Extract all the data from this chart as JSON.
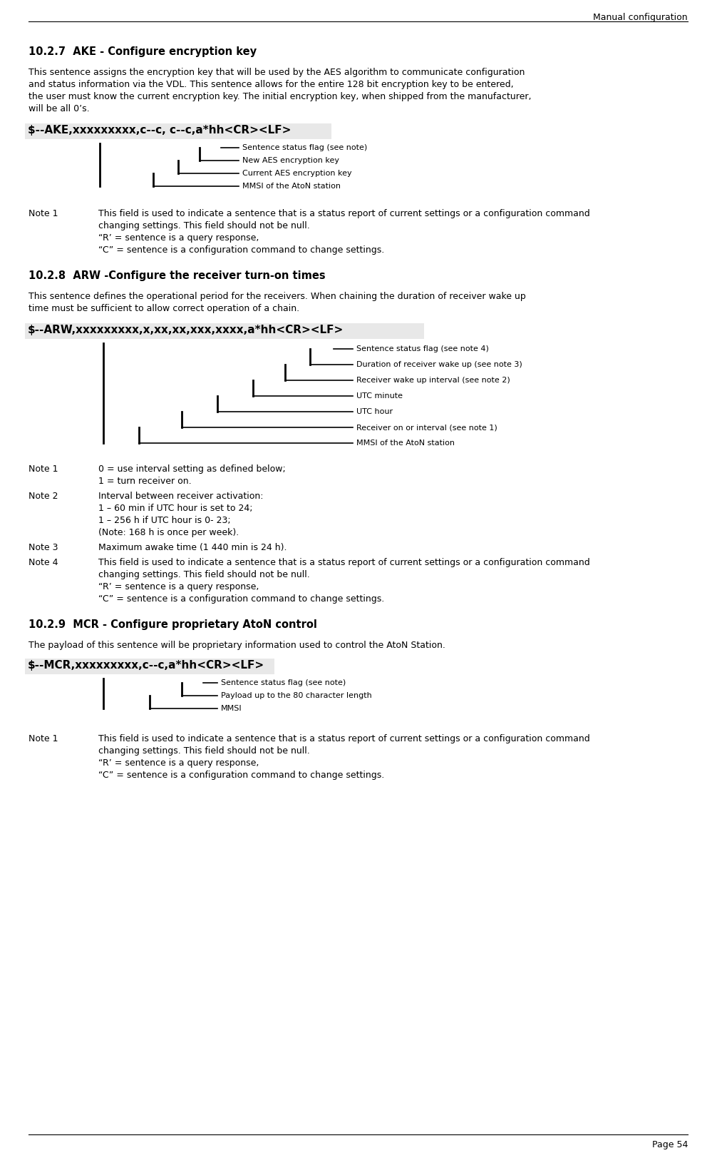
{
  "page_header": "Manual configuration",
  "page_footer": "Page 54",
  "section_1_title": "10.2.7  AKE - Configure encryption key",
  "section_1_body_lines": [
    "This sentence assigns the encryption key that will be used by the AES algorithm to communicate configuration",
    "and status information via the VDL. This sentence allows for the entire 128 bit encryption key to be entered,",
    "the user must know the current encryption key. The initial encryption key, when shipped from the manufacturer,",
    "will be all 0’s."
  ],
  "ake_sentence": "$--AKE,xxxxxxxxx,c--c, c--c,a*hh<CR><LF>",
  "ake_labels": [
    "Sentence status flag (see note)",
    "New AES encryption key",
    "Current AES encryption key",
    "MMSI of the AtoN station"
  ],
  "ake_note_label": "Note 1",
  "ake_note_lines": [
    "This field is used to indicate a sentence that is a status report of current settings or a configuration command",
    "changing settings. This field should not be null.",
    "“R’ = sentence is a query response,",
    "“C” = sentence is a configuration command to change settings."
  ],
  "section_2_title": "10.2.8  ARW -Configure the receiver turn-on times",
  "section_2_body_lines": [
    "This sentence defines the operational period for the receivers. When chaining the duration of receiver wake up",
    "time must be sufficient to allow correct operation of a chain."
  ],
  "arw_sentence": "$--ARW,xxxxxxxxx,x,xx,xx,xxx,xxxx,a*hh<CR><LF>",
  "arw_labels": [
    "Sentence status flag (see note 4)",
    "Duration of receiver wake up (see note 3)",
    "Receiver wake up interval (see note 2)",
    "UTC minute",
    "UTC hour",
    "Receiver on or interval (see note 1)",
    "MMSI of the AtoN station"
  ],
  "arw_note1_label": "Note 1",
  "arw_note1_lines": [
    "0 = use interval setting as defined below;",
    "1 = turn receiver on."
  ],
  "arw_note2_label": "Note 2",
  "arw_note2_lines": [
    "Interval between receiver activation:",
    "1 – 60 min if UTC hour is set to 24;",
    "1 – 256 h if UTC hour is 0- 23;",
    "(Note: 168 h is once per week)."
  ],
  "arw_note3_label": "Note 3",
  "arw_note3_lines": [
    "Maximum awake time (1 440 min is 24 h)."
  ],
  "arw_note4_label": "Note 4",
  "arw_note4_lines": [
    "This field is used to indicate a sentence that is a status report of current settings or a configuration command",
    "changing settings. This field should not be null.",
    "“R’ = sentence is a query response,",
    "“C” = sentence is a configuration command to change settings."
  ],
  "section_3_title": "10.2.9  MCR - Configure proprietary AtoN control",
  "section_3_body": "The payload of this sentence will be proprietary information used to control the AtoN Station.",
  "mcr_sentence": "$--MCR,xxxxxxxxx,c--c,a*hh<CR><LF>",
  "mcr_labels": [
    "Sentence status flag (see note)",
    "Payload up to the 80 character length",
    "MMSI"
  ],
  "mcr_note_label": "Note 1",
  "mcr_note_lines": [
    "This field is used to indicate a sentence that is a status report of current settings or a configuration command",
    "changing settings. This field should not be null.",
    "“R’ = sentence is a query response,",
    "“C” = sentence is a configuration command to change settings."
  ],
  "bg_color": "#ffffff"
}
